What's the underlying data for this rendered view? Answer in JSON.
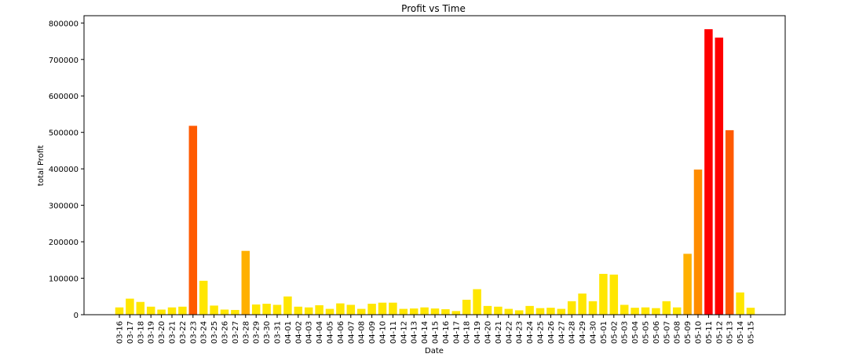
{
  "chart_data": {
    "type": "bar",
    "title": "Profit vs Time",
    "xlabel": "Date",
    "ylabel": "total Profit",
    "ylim": [
      0,
      820000
    ],
    "yticks": [
      0,
      100000,
      200000,
      300000,
      400000,
      500000,
      600000,
      700000,
      800000
    ],
    "ytick_labels": [
      "0",
      "100000",
      "200000",
      "300000",
      "400000",
      "500000",
      "600000",
      "700000",
      "800000"
    ],
    "grid": false,
    "legend": "none",
    "categories": [
      "03-16",
      "03-17",
      "03-18",
      "03-19",
      "03-20",
      "03-21",
      "03-22",
      "03-23",
      "03-24",
      "03-25",
      "03-26",
      "03-27",
      "03-28",
      "03-29",
      "03-30",
      "03-31",
      "04-01",
      "04-02",
      "04-03",
      "04-04",
      "04-05",
      "04-06",
      "04-07",
      "04-08",
      "04-09",
      "04-10",
      "04-11",
      "04-12",
      "04-13",
      "04-14",
      "04-15",
      "04-16",
      "04-17",
      "04-18",
      "04-19",
      "04-20",
      "04-21",
      "04-22",
      "04-23",
      "04-24",
      "04-25",
      "04-26",
      "04-27",
      "04-28",
      "04-29",
      "04-30",
      "05-01",
      "05-02",
      "05-03",
      "05-04",
      "05-05",
      "05-06",
      "05-07",
      "05-08",
      "05-09",
      "05-10",
      "05-11",
      "05-12",
      "05-13",
      "05-14",
      "05-15"
    ],
    "values": [
      20000,
      44000,
      35000,
      22000,
      14000,
      20000,
      22000,
      518000,
      93000,
      25000,
      14000,
      13000,
      175000,
      28000,
      30000,
      27000,
      50000,
      22000,
      20000,
      26000,
      16000,
      31000,
      27000,
      16000,
      30000,
      33000,
      33000,
      16000,
      17000,
      20000,
      17000,
      15000,
      10000,
      41000,
      70000,
      24000,
      22000,
      16000,
      12000,
      24000,
      18000,
      19000,
      16000,
      37000,
      58000,
      37000,
      112000,
      110000,
      27000,
      19000,
      20000,
      18000,
      37000,
      20000,
      167000,
      398000,
      783000,
      760000,
      506000,
      61000,
      19000
    ],
    "colors": {
      "low": "#ffe600",
      "mid": "#ffb000",
      "high_mid": "#ff8c00",
      "high": "#ff5a00",
      "max": "#ff0000"
    }
  }
}
